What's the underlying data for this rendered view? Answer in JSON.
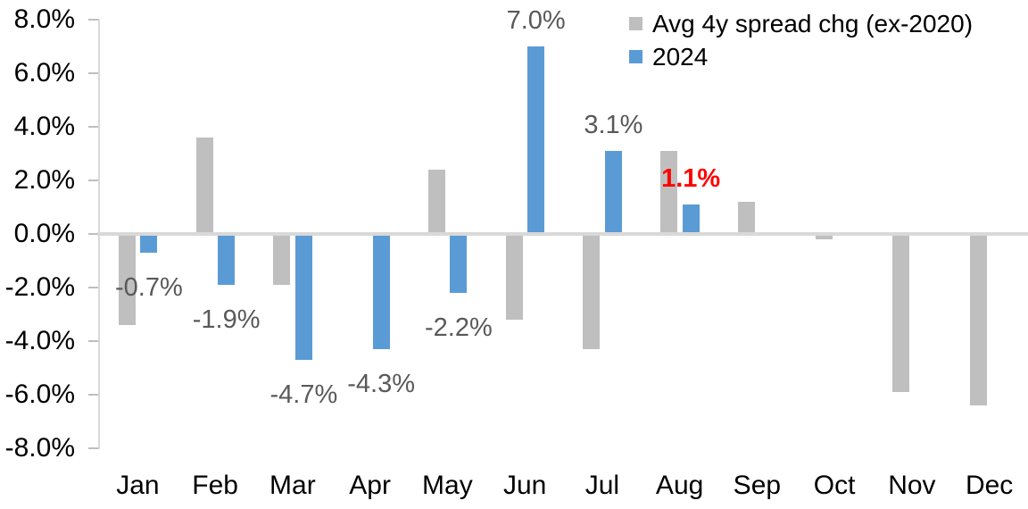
{
  "chart_data": {
    "type": "bar",
    "title": "",
    "categories": [
      "Jan",
      "Feb",
      "Mar",
      "Apr",
      "May",
      "Jun",
      "Jul",
      "Aug",
      "Sep",
      "Oct",
      "Nov",
      "Dec"
    ],
    "series": [
      {
        "name": "Avg 4y spread chg (ex-2020)",
        "color": "#bfbfbf",
        "values": [
          -3.4,
          3.6,
          -1.9,
          0.0,
          2.4,
          -3.2,
          -4.3,
          3.1,
          1.2,
          -0.2,
          -5.9,
          -6.4
        ]
      },
      {
        "name": "2024",
        "color": "#5b9bd5",
        "values": [
          -0.7,
          -1.9,
          -4.7,
          -4.3,
          -2.2,
          7.0,
          3.1,
          1.1,
          null,
          null,
          null,
          null
        ],
        "labels": [
          {
            "text": "-0.7%"
          },
          {
            "text": "-1.9%"
          },
          {
            "text": "-4.7%"
          },
          {
            "text": "-4.3%"
          },
          {
            "text": "-2.2%"
          },
          {
            "text": "7.0%"
          },
          {
            "text": "3.1%"
          },
          {
            "text": "1.1%",
            "highlight": true
          }
        ]
      }
    ],
    "ylim": [
      -8,
      8
    ],
    "ytick_labels": [
      "8.0%",
      "6.0%",
      "4.0%",
      "2.0%",
      "0.0%",
      "-2.0%",
      "-4.0%",
      "-6.0%",
      "-8.0%"
    ],
    "grid": false,
    "legend_position": "top-right",
    "colors": {
      "axis_line": "#d9d9d9",
      "tick_mark": "#bfbfbf",
      "data_label": "#595959",
      "highlight_label": "#ff0000",
      "axis_text": "#000000"
    }
  }
}
